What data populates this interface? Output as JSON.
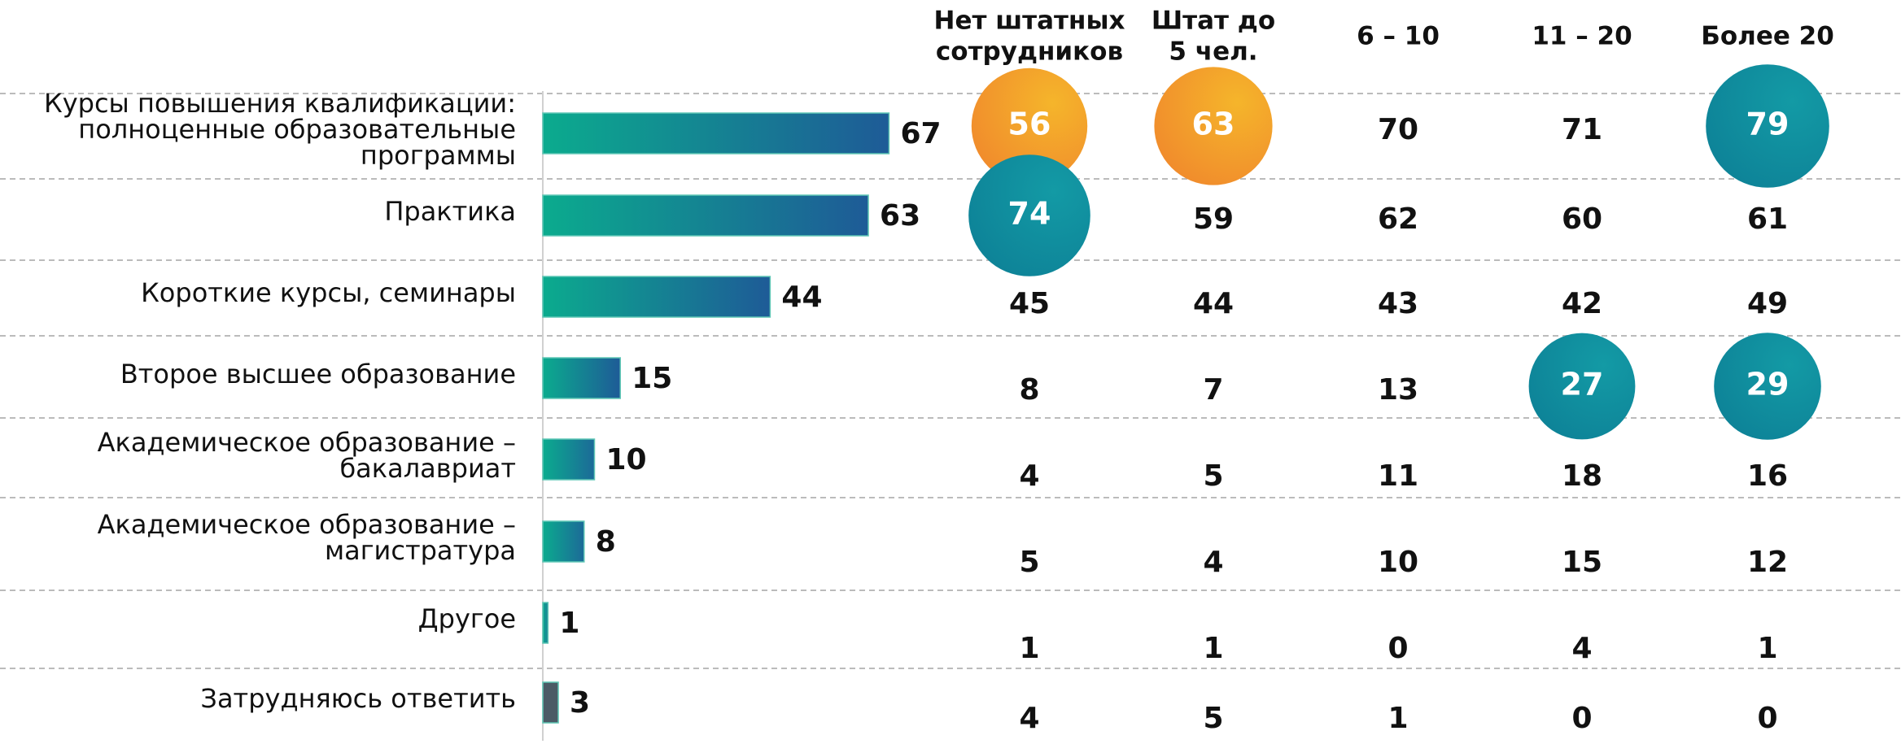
{
  "chart_data": {
    "type": "bar",
    "orientation": "horizontal",
    "categories": [
      [
        "Курсы повышения квалификации:",
        "полноценные образовательные",
        "программы"
      ],
      [
        "Практика"
      ],
      [
        "Короткие курсы, семинары"
      ],
      [
        "Второе высшее образование"
      ],
      [
        "Академическое образование –",
        "бакалавриат"
      ],
      [
        "Академическое образование –",
        "магистратура"
      ],
      [
        "Другое"
      ],
      [
        "Затрудняюсь ответить"
      ]
    ],
    "values": [
      67,
      63,
      44,
      15,
      10,
      8,
      1,
      3
    ],
    "colors": [
      "#0bab8e",
      "#0bab8e",
      "#0bab8e",
      "#0bab8e",
      "#0bab8e",
      "#0bab8e",
      "#0bab8e",
      "#4b5b66"
    ],
    "colors_end": [
      "#1e5b97",
      "#1e5b97",
      "#1e5b97",
      "#1e5b97",
      "#1c6a98",
      "#1c6a98",
      "#1a7d96",
      "#4b5b66"
    ],
    "table": {
      "columns": [
        [
          "Нет штатных",
          "сотрудников"
        ],
        [
          "Штат до",
          "5 чел."
        ],
        [
          "6 – 10"
        ],
        [
          "11 – 20"
        ],
        [
          "Более 20"
        ]
      ],
      "rows": [
        [
          56,
          63,
          70,
          71,
          79
        ],
        [
          74,
          59,
          62,
          60,
          61
        ],
        [
          45,
          44,
          43,
          42,
          49
        ],
        [
          8,
          7,
          13,
          27,
          29
        ],
        [
          4,
          5,
          11,
          18,
          16
        ],
        [
          5,
          4,
          10,
          15,
          12
        ],
        [
          1,
          1,
          0,
          4,
          1
        ],
        [
          4,
          5,
          1,
          0,
          0
        ]
      ]
    },
    "highlights": [
      {
        "row": 0,
        "col": 0,
        "color": "#f0862c"
      },
      {
        "row": 0,
        "col": 1,
        "color": "#f0862c"
      },
      {
        "row": 1,
        "col": 0,
        "color": "#0d8096"
      },
      {
        "row": 0,
        "col": 4,
        "color": "#0d8096"
      },
      {
        "row": 3,
        "col": 3,
        "color": "#0d8096"
      },
      {
        "row": 3,
        "col": 4,
        "color": "#0d8096"
      }
    ]
  }
}
